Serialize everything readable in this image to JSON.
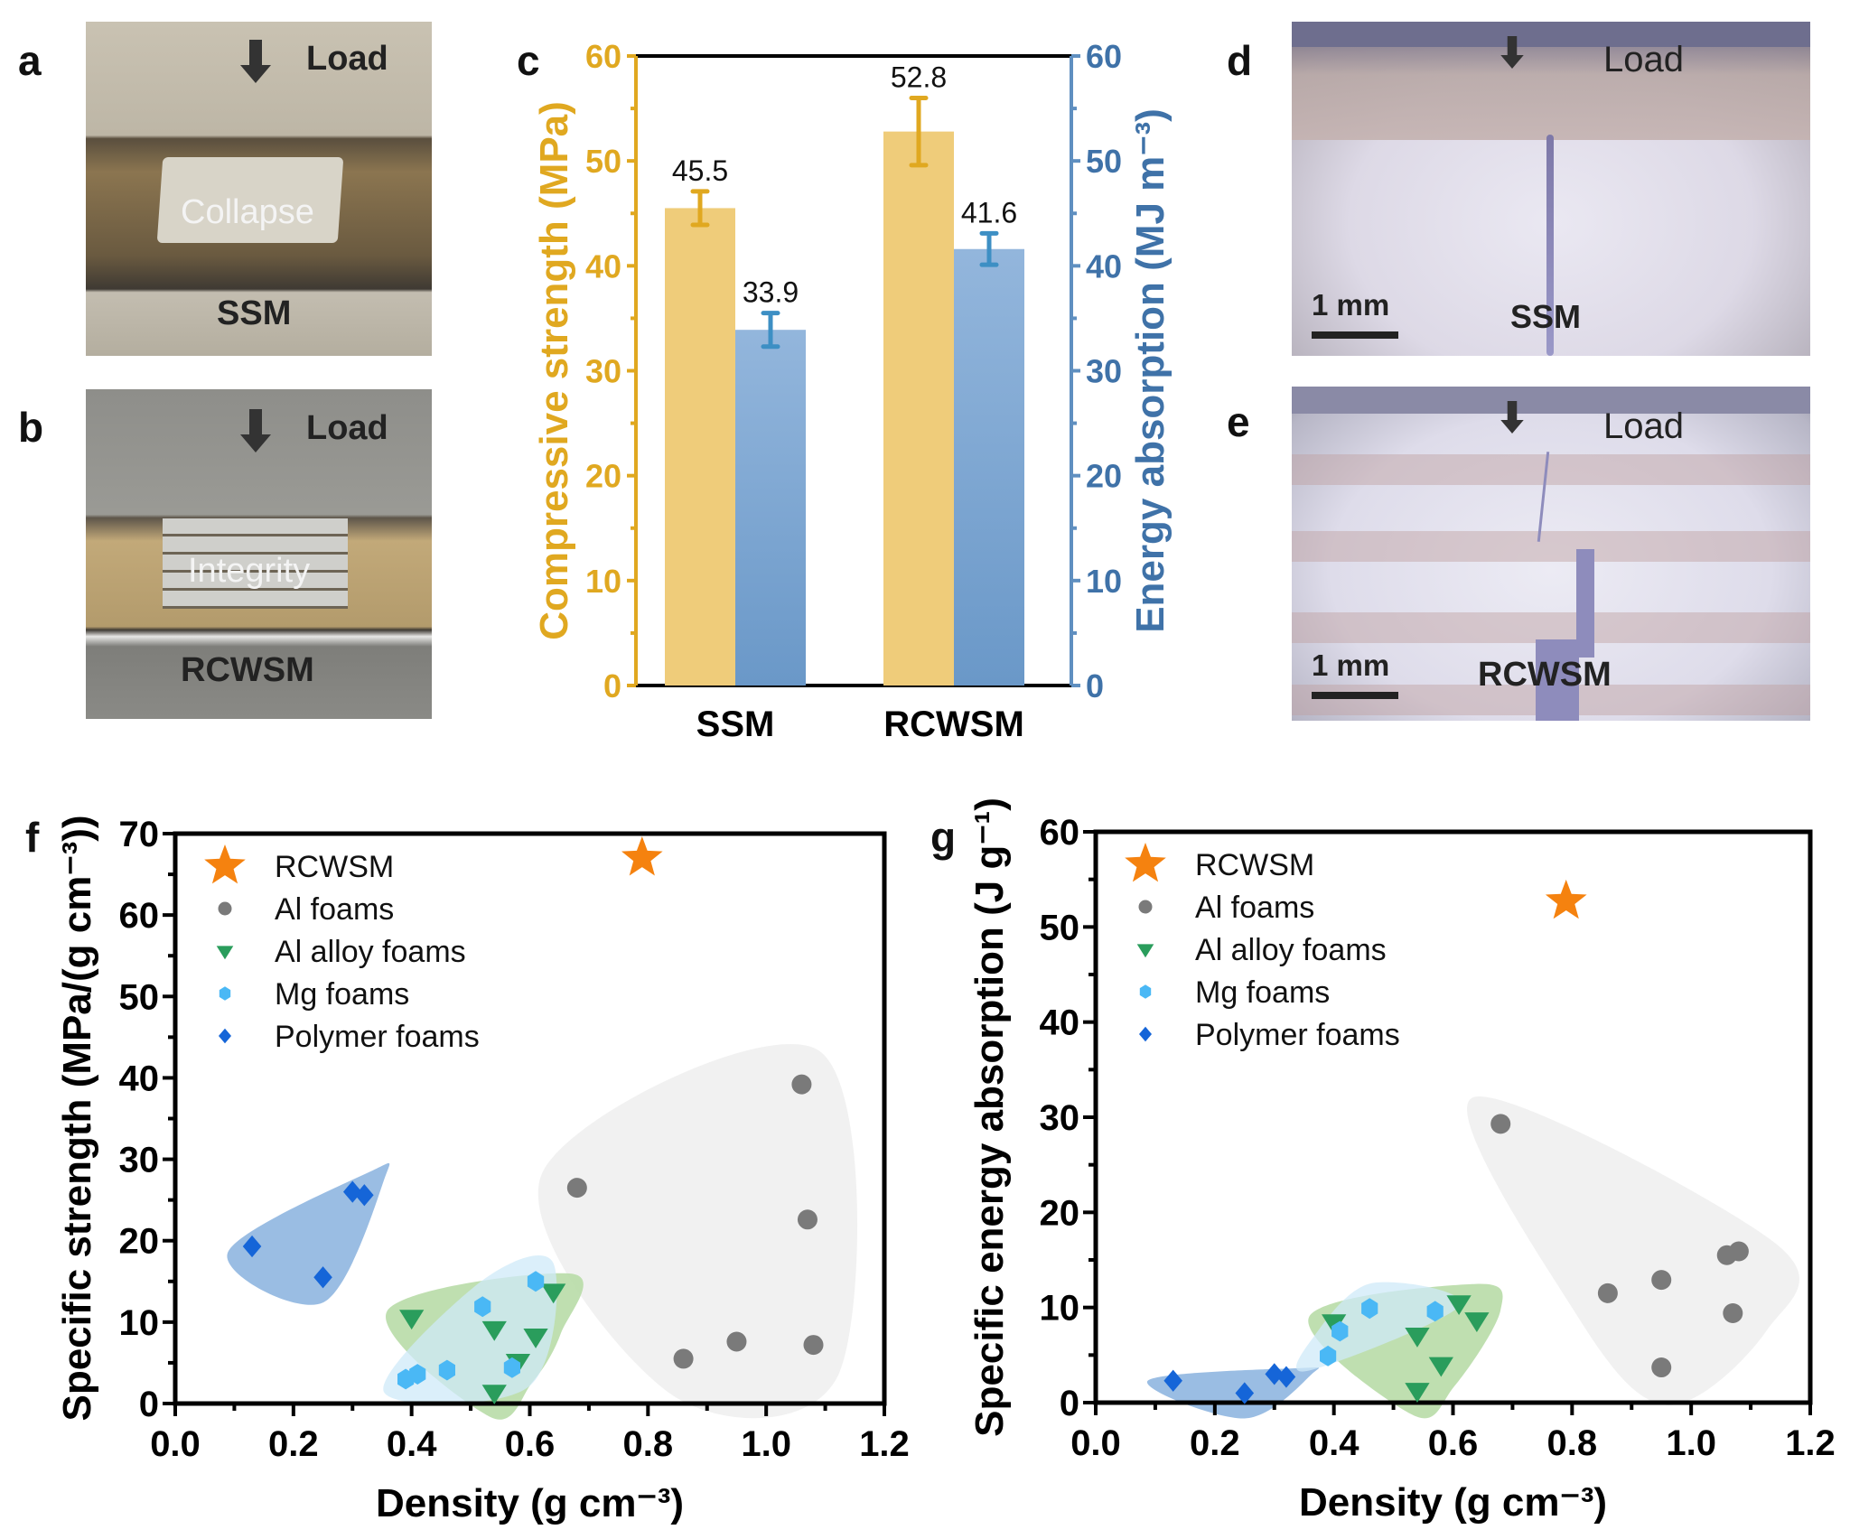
{
  "panels": {
    "a": {
      "letter": "a",
      "load_label": "Load",
      "center_label": "Collapse",
      "sample_label": "SSM"
    },
    "b": {
      "letter": "b",
      "load_label": "Load",
      "center_label": "Integrity",
      "sample_label": "RCWSM"
    },
    "c": {
      "letter": "c"
    },
    "d": {
      "letter": "d",
      "load_label": "Load",
      "scale_label": "1 mm",
      "sample_label": "SSM"
    },
    "e": {
      "letter": "e",
      "load_label": "Load",
      "scale_label": "1 mm",
      "sample_label": "RCWSM"
    },
    "f": {
      "letter": "f"
    },
    "g": {
      "letter": "g"
    }
  },
  "colors": {
    "strength": "#e0a820",
    "strength_bar": "#efcc7a",
    "energy": "#3f72a8",
    "energy_bar_top": "#93b6dc",
    "energy_bar_bottom": "#6a98c8",
    "energy_err": "#3d8fc4",
    "rcwsm_star": "#f5820f",
    "al_foam": "#7a7a7a",
    "al_foam_region": "#efefef",
    "al_alloy": "#2a9d5c",
    "al_alloy_region": "#b8dba7",
    "mg_foam": "#4ab8f5",
    "mg_foam_region": "#cfeaf8",
    "polymer": "#1565d8",
    "polymer_region": "#8fb6e0"
  },
  "chart_data": [
    {
      "id": "c",
      "type": "bar",
      "categories": [
        "SSM",
        "RCWSM"
      ],
      "series": [
        {
          "name": "Compressive strength",
          "axis": "left",
          "values": [
            45.5,
            52.8
          ],
          "errors": [
            1.6,
            3.2
          ],
          "labels": [
            "45.5",
            "52.8"
          ]
        },
        {
          "name": "Energy absorption",
          "axis": "right",
          "values": [
            33.9,
            41.6
          ],
          "errors": [
            1.6,
            1.5
          ],
          "labels": [
            "33.9",
            "41.6"
          ]
        }
      ],
      "ylabel": "Compressive strength (MPa)",
      "ylabel2": "Energy absorption (MJ m⁻³)",
      "ylim": [
        0,
        60
      ],
      "ylim2": [
        0,
        60
      ],
      "yticks": [
        "0",
        "10",
        "20",
        "30",
        "40",
        "50",
        "60"
      ],
      "grid": false
    },
    {
      "id": "f",
      "type": "scatter",
      "xlabel": "Density (g cm⁻³)",
      "ylabel": "Specific strength (MPa/(g cm⁻³))",
      "xlim": [
        0,
        1.2
      ],
      "ylim": [
        0,
        70
      ],
      "xticks": [
        "0.0",
        "0.2",
        "0.4",
        "0.6",
        "0.8",
        "1.0",
        "1.2"
      ],
      "yticks": [
        "0",
        "10",
        "20",
        "30",
        "40",
        "50",
        "60",
        "70"
      ],
      "legend_position": "top-left",
      "series": [
        {
          "name": "RCWSM",
          "marker": "star",
          "points": [
            [
              0.79,
              67
            ]
          ]
        },
        {
          "name": "Al foams",
          "marker": "circle",
          "points": [
            [
              0.68,
              26.5
            ],
            [
              0.86,
              5.5
            ],
            [
              0.95,
              7.6
            ],
            [
              1.06,
              39.2
            ],
            [
              1.07,
              22.6
            ],
            [
              1.08,
              7.2
            ]
          ]
        },
        {
          "name": "Al alloy foams",
          "marker": "triangle-down",
          "points": [
            [
              0.4,
              10.6
            ],
            [
              0.54,
              1.4
            ],
            [
              0.54,
              9.2
            ],
            [
              0.58,
              5.2
            ],
            [
              0.61,
              8.3
            ],
            [
              0.64,
              13.8
            ]
          ]
        },
        {
          "name": "Mg foams",
          "marker": "hexagon",
          "points": [
            [
              0.39,
              3.0
            ],
            [
              0.41,
              3.6
            ],
            [
              0.46,
              4.1
            ],
            [
              0.52,
              11.9
            ],
            [
              0.57,
              4.4
            ],
            [
              0.61,
              15.0
            ]
          ]
        },
        {
          "name": "Polymer foams",
          "marker": "diamond",
          "points": [
            [
              0.13,
              19.3
            ],
            [
              0.25,
              15.5
            ],
            [
              0.3,
              26.0
            ],
            [
              0.32,
              25.6
            ]
          ]
        }
      ]
    },
    {
      "id": "g",
      "type": "scatter",
      "xlabel": "Density (g cm⁻³)",
      "ylabel": "Specific energy absorption (J g⁻¹)",
      "xlim": [
        0,
        1.2
      ],
      "ylim": [
        0,
        60
      ],
      "xticks": [
        "0.0",
        "0.2",
        "0.4",
        "0.6",
        "0.8",
        "1.0",
        "1.2"
      ],
      "yticks": [
        "0",
        "10",
        "20",
        "30",
        "40",
        "50",
        "60"
      ],
      "legend_position": "top-left",
      "series": [
        {
          "name": "RCWSM",
          "marker": "star",
          "points": [
            [
              0.79,
              52.7
            ]
          ]
        },
        {
          "name": "Al foams",
          "marker": "circle",
          "points": [
            [
              0.68,
              29.3
            ],
            [
              0.86,
              11.5
            ],
            [
              0.95,
              12.9
            ],
            [
              0.95,
              3.7
            ],
            [
              1.06,
              15.5
            ],
            [
              1.08,
              15.9
            ],
            [
              1.07,
              9.4
            ]
          ]
        },
        {
          "name": "Al alloy foams",
          "marker": "triangle-down",
          "points": [
            [
              0.4,
              8.5
            ],
            [
              0.54,
              1.3
            ],
            [
              0.54,
              7.1
            ],
            [
              0.58,
              4.0
            ],
            [
              0.61,
              10.5
            ],
            [
              0.64,
              8.7
            ]
          ]
        },
        {
          "name": "Mg foams",
          "marker": "hexagon",
          "points": [
            [
              0.39,
              4.9
            ],
            [
              0.41,
              7.5
            ],
            [
              0.46,
              9.9
            ],
            [
              0.57,
              9.6
            ]
          ]
        },
        {
          "name": "Polymer foams",
          "marker": "diamond",
          "points": [
            [
              0.13,
              2.3
            ],
            [
              0.25,
              1.0
            ],
            [
              0.3,
              3.0
            ],
            [
              0.32,
              2.7
            ]
          ]
        }
      ]
    }
  ]
}
